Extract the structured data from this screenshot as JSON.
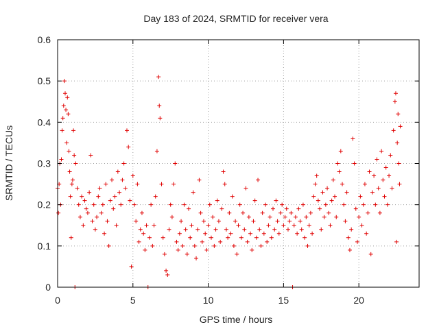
{
  "chart_data": {
    "type": "scatter",
    "title": "Day 183 of 2024, SRMTID for receiver vera",
    "xlabel": "GPS time / hours",
    "ylabel": "SRMTID / TECUs",
    "xlim": [
      0,
      24
    ],
    "ylim": [
      0,
      0.6
    ],
    "xticks": [
      0,
      5,
      10,
      15,
      20
    ],
    "xtick_labels": [
      "0",
      "5",
      "10",
      "15",
      "20"
    ],
    "yticks": [
      0,
      0.1,
      0.2,
      0.3,
      0.4,
      0.5,
      0.6
    ],
    "ytick_labels": [
      "0",
      "0.1",
      "0.2",
      "0.3",
      "0.4",
      "0.5",
      "0.6"
    ],
    "grid": true,
    "legend": "none",
    "marker": "+",
    "color": "#e00000",
    "series": [
      {
        "name": "SRMTID",
        "points": [
          [
            0.0,
            0.24
          ],
          [
            0.05,
            0.18
          ],
          [
            0.1,
            0.25
          ],
          [
            0.15,
            0.3
          ],
          [
            0.2,
            0.2
          ],
          [
            0.25,
            0.31
          ],
          [
            0.3,
            0.38
          ],
          [
            0.35,
            0.41
          ],
          [
            0.4,
            0.44
          ],
          [
            0.45,
            0.5
          ],
          [
            0.5,
            0.47
          ],
          [
            0.55,
            0.43
          ],
          [
            0.6,
            0.35
          ],
          [
            0.65,
            0.46
          ],
          [
            0.7,
            0.42
          ],
          [
            0.75,
            0.33
          ],
          [
            0.8,
            0.28
          ],
          [
            0.85,
            0.22
          ],
          [
            0.9,
            0.12
          ],
          [
            0.95,
            0.25
          ],
          [
            1.0,
            0.26
          ],
          [
            1.05,
            0.38
          ],
          [
            1.1,
            0.32
          ],
          [
            1.15,
            0.0
          ],
          [
            1.2,
            0.3
          ],
          [
            1.3,
            0.24
          ],
          [
            1.4,
            0.2
          ],
          [
            1.5,
            0.17
          ],
          [
            1.6,
            0.22
          ],
          [
            1.7,
            0.15
          ],
          [
            1.8,
            0.21
          ],
          [
            1.9,
            0.19
          ],
          [
            2.0,
            0.18
          ],
          [
            2.1,
            0.23
          ],
          [
            2.2,
            0.32
          ],
          [
            2.3,
            0.16
          ],
          [
            2.4,
            0.2
          ],
          [
            2.5,
            0.14
          ],
          [
            2.6,
            0.17
          ],
          [
            2.7,
            0.22
          ],
          [
            2.8,
            0.24
          ],
          [
            2.9,
            0.18
          ],
          [
            3.0,
            0.2
          ],
          [
            3.1,
            0.13
          ],
          [
            3.2,
            0.25
          ],
          [
            3.3,
            0.16
          ],
          [
            3.4,
            0.1
          ],
          [
            3.5,
            0.21
          ],
          [
            3.6,
            0.26
          ],
          [
            3.7,
            0.19
          ],
          [
            3.8,
            0.22
          ],
          [
            3.9,
            0.15
          ],
          [
            4.0,
            0.28
          ],
          [
            4.1,
            0.23
          ],
          [
            4.2,
            0.2
          ],
          [
            4.3,
            0.26
          ],
          [
            4.4,
            0.3
          ],
          [
            4.5,
            0.24
          ],
          [
            4.6,
            0.38
          ],
          [
            4.7,
            0.34
          ],
          [
            4.8,
            0.21
          ],
          [
            4.9,
            0.05
          ],
          [
            5.0,
            0.27
          ],
          [
            5.1,
            0.2
          ],
          [
            5.2,
            0.16
          ],
          [
            5.3,
            0.25
          ],
          [
            5.4,
            0.11
          ],
          [
            5.5,
            0.14
          ],
          [
            5.6,
            0.18
          ],
          [
            5.7,
            0.13
          ],
          [
            5.8,
            0.09
          ],
          [
            5.9,
            0.15
          ],
          [
            6.0,
            0.0
          ],
          [
            6.1,
            0.12
          ],
          [
            6.2,
            0.2
          ],
          [
            6.3,
            0.1
          ],
          [
            6.4,
            0.15
          ],
          [
            6.5,
            0.22
          ],
          [
            6.6,
            0.33
          ],
          [
            6.7,
            0.51
          ],
          [
            6.75,
            0.44
          ],
          [
            6.8,
            0.41
          ],
          [
            6.9,
            0.25
          ],
          [
            7.0,
            0.12
          ],
          [
            7.1,
            0.08
          ],
          [
            7.2,
            0.04
          ],
          [
            7.3,
            0.03
          ],
          [
            7.4,
            0.14
          ],
          [
            7.5,
            0.2
          ],
          [
            7.6,
            0.17
          ],
          [
            7.7,
            0.25
          ],
          [
            7.8,
            0.3
          ],
          [
            7.9,
            0.11
          ],
          [
            8.0,
            0.09
          ],
          [
            8.1,
            0.13
          ],
          [
            8.2,
            0.16
          ],
          [
            8.3,
            0.1
          ],
          [
            8.4,
            0.2
          ],
          [
            8.5,
            0.14
          ],
          [
            8.6,
            0.08
          ],
          [
            8.7,
            0.19
          ],
          [
            8.8,
            0.12
          ],
          [
            8.9,
            0.15
          ],
          [
            9.0,
            0.23
          ],
          [
            9.1,
            0.1
          ],
          [
            9.2,
            0.07
          ],
          [
            9.3,
            0.14
          ],
          [
            9.4,
            0.26
          ],
          [
            9.5,
            0.18
          ],
          [
            9.6,
            0.11
          ],
          [
            9.7,
            0.16
          ],
          [
            9.8,
            0.13
          ],
          [
            9.9,
            0.09
          ],
          [
            10.0,
            0.15
          ],
          [
            10.1,
            0.2
          ],
          [
            10.2,
            0.12
          ],
          [
            10.3,
            0.17
          ],
          [
            10.4,
            0.1
          ],
          [
            10.5,
            0.14
          ],
          [
            10.6,
            0.21
          ],
          [
            10.7,
            0.16
          ],
          [
            10.8,
            0.11
          ],
          [
            10.9,
            0.19
          ],
          [
            11.0,
            0.28
          ],
          [
            11.1,
            0.25
          ],
          [
            11.2,
            0.14
          ],
          [
            11.3,
            0.12
          ],
          [
            11.4,
            0.18
          ],
          [
            11.5,
            0.13
          ],
          [
            11.6,
            0.22
          ],
          [
            11.7,
            0.1
          ],
          [
            11.8,
            0.16
          ],
          [
            11.9,
            0.08
          ],
          [
            12.0,
            0.15
          ],
          [
            12.1,
            0.2
          ],
          [
            12.2,
            0.12
          ],
          [
            12.3,
            0.18
          ],
          [
            12.4,
            0.14
          ],
          [
            12.5,
            0.24
          ],
          [
            12.6,
            0.11
          ],
          [
            12.7,
            0.17
          ],
          [
            12.8,
            0.13
          ],
          [
            12.9,
            0.09
          ],
          [
            13.0,
            0.16
          ],
          [
            13.1,
            0.21
          ],
          [
            13.2,
            0.12
          ],
          [
            13.3,
            0.26
          ],
          [
            13.4,
            0.14
          ],
          [
            13.5,
            0.1
          ],
          [
            13.6,
            0.18
          ],
          [
            13.7,
            0.13
          ],
          [
            13.8,
            0.2
          ],
          [
            13.9,
            0.11
          ],
          [
            14.0,
            0.15
          ],
          [
            14.1,
            0.17
          ],
          [
            14.2,
            0.12
          ],
          [
            14.3,
            0.19
          ],
          [
            14.4,
            0.14
          ],
          [
            14.5,
            0.21
          ],
          [
            14.6,
            0.16
          ],
          [
            14.7,
            0.13
          ],
          [
            14.8,
            0.18
          ],
          [
            14.9,
            0.2
          ],
          [
            15.0,
            0.15
          ],
          [
            15.1,
            0.17
          ],
          [
            15.2,
            0.19
          ],
          [
            15.3,
            0.14
          ],
          [
            15.4,
            0.16
          ],
          [
            15.5,
            0.18
          ],
          [
            15.6,
            0.0
          ],
          [
            15.7,
            0.15
          ],
          [
            15.8,
            0.17
          ],
          [
            15.9,
            0.13
          ],
          [
            16.0,
            0.19
          ],
          [
            16.1,
            0.16
          ],
          [
            16.2,
            0.14
          ],
          [
            16.3,
            0.2
          ],
          [
            16.4,
            0.12
          ],
          [
            16.5,
            0.17
          ],
          [
            16.6,
            0.1
          ],
          [
            16.7,
            0.15
          ],
          [
            16.8,
            0.18
          ],
          [
            16.9,
            0.13
          ],
          [
            17.0,
            0.22
          ],
          [
            17.1,
            0.25
          ],
          [
            17.2,
            0.27
          ],
          [
            17.3,
            0.21
          ],
          [
            17.4,
            0.19
          ],
          [
            17.5,
            0.14
          ],
          [
            17.6,
            0.23
          ],
          [
            17.7,
            0.17
          ],
          [
            17.8,
            0.2
          ],
          [
            17.9,
            0.24
          ],
          [
            18.0,
            0.18
          ],
          [
            18.1,
            0.15
          ],
          [
            18.2,
            0.21
          ],
          [
            18.3,
            0.26
          ],
          [
            18.4,
            0.22
          ],
          [
            18.5,
            0.17
          ],
          [
            18.6,
            0.3
          ],
          [
            18.7,
            0.28
          ],
          [
            18.8,
            0.33
          ],
          [
            18.9,
            0.25
          ],
          [
            19.0,
            0.2
          ],
          [
            19.1,
            0.16
          ],
          [
            19.2,
            0.23
          ],
          [
            19.3,
            0.12
          ],
          [
            19.4,
            0.09
          ],
          [
            19.5,
            0.14
          ],
          [
            19.6,
            0.36
          ],
          [
            19.7,
            0.3
          ],
          [
            19.8,
            0.19
          ],
          [
            19.9,
            0.11
          ],
          [
            20.0,
            0.17
          ],
          [
            20.1,
            0.22
          ],
          [
            20.2,
            0.15
          ],
          [
            20.3,
            0.2
          ],
          [
            20.4,
            0.25
          ],
          [
            20.5,
            0.13
          ],
          [
            20.6,
            0.18
          ],
          [
            20.7,
            0.28
          ],
          [
            20.8,
            0.08
          ],
          [
            20.9,
            0.23
          ],
          [
            21.0,
            0.27
          ],
          [
            21.1,
            0.2
          ],
          [
            21.2,
            0.31
          ],
          [
            21.3,
            0.24
          ],
          [
            21.4,
            0.18
          ],
          [
            21.5,
            0.33
          ],
          [
            21.6,
            0.26
          ],
          [
            21.7,
            0.22
          ],
          [
            21.8,
            0.29
          ],
          [
            21.9,
            0.2
          ],
          [
            22.0,
            0.27
          ],
          [
            22.1,
            0.32
          ],
          [
            22.2,
            0.24
          ],
          [
            22.3,
            0.38
          ],
          [
            22.4,
            0.45
          ],
          [
            22.45,
            0.47
          ],
          [
            22.5,
            0.11
          ],
          [
            22.55,
            0.35
          ],
          [
            22.6,
            0.42
          ],
          [
            22.65,
            0.3
          ],
          [
            22.7,
            0.25
          ],
          [
            22.75,
            0.39
          ]
        ]
      }
    ]
  }
}
